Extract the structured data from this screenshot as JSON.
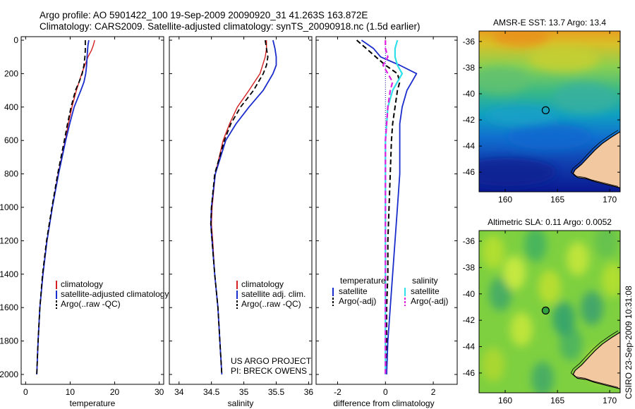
{
  "header": {
    "line1": "Argo profile: AO 5901422_100 19-Sep-2009 20090920_31 41.263S 163.872E",
    "line2": "Climatology: CARS2009. Satellite-adjusted climatology: synTS_20090918.nc (1.5d earlier)"
  },
  "credit": "CSIRO 23-Sep-2009 10:31:08",
  "project": {
    "line1": "US ARGO PROJECT",
    "line2": "PI: BRECK OWENS"
  },
  "colors": {
    "climatology": "#d42020",
    "satellite": "#1a2ccc",
    "argo": "#000000",
    "sal_satellite": "#30e0e8",
    "sal_argo": "#e020e0"
  },
  "chart_data": [
    {
      "type": "line",
      "id": "temperature",
      "xlabel": "temperature",
      "ylabel": "",
      "xlim": [
        -1,
        31
      ],
      "ylim": [
        2050,
        0
      ],
      "xticks": [
        0,
        10,
        20,
        30
      ],
      "yticks": [
        0,
        200,
        400,
        600,
        800,
        1000,
        1200,
        1400,
        1600,
        1800,
        2000
      ],
      "legend": [
        "climatology",
        "satellite-adjusted climatology",
        "Argo(..raw -QC)"
      ],
      "series": [
        {
          "name": "climatology",
          "depth": [
            0,
            30,
            60,
            100,
            150,
            200,
            250,
            300,
            400,
            500,
            600,
            800,
            1000,
            1200,
            1400,
            1600,
            1800,
            2000
          ],
          "values": [
            15.5,
            15.2,
            14.8,
            14.0,
            13.3,
            12.6,
            12.0,
            11.4,
            10.4,
            9.6,
            8.9,
            7.3,
            6.0,
            4.8,
            3.9,
            3.2,
            2.8,
            2.5
          ]
        },
        {
          "name": "satellite-adjusted climatology",
          "depth": [
            0,
            30,
            60,
            100,
            150,
            200,
            250,
            300,
            400,
            500,
            600,
            800,
            1000,
            1200,
            1400,
            1600,
            1800,
            2000
          ],
          "values": [
            14.2,
            14.0,
            13.9,
            13.8,
            13.7,
            13.5,
            13.1,
            12.4,
            10.9,
            9.9,
            9.0,
            7.4,
            6.0,
            4.8,
            3.9,
            3.2,
            2.8,
            2.5
          ]
        },
        {
          "name": "Argo(..raw -QC)",
          "depth": [
            0,
            30,
            60,
            100,
            150,
            200,
            250,
            300,
            400,
            500,
            600,
            800,
            1000,
            1200,
            1400,
            1600,
            1800,
            2000
          ],
          "values": [
            13.4,
            13.4,
            13.4,
            13.3,
            13.1,
            12.7,
            12.0,
            11.2,
            10.2,
            9.4,
            8.7,
            7.2,
            5.9,
            4.7,
            3.8,
            3.2,
            2.8,
            2.5
          ]
        }
      ]
    },
    {
      "type": "line",
      "id": "salinity",
      "xlabel": "salinity",
      "ylabel": "",
      "xlim": [
        33.85,
        36.05
      ],
      "ylim": [
        2050,
        0
      ],
      "xticks": [
        34,
        34.5,
        35,
        35.5,
        36
      ],
      "legend": [
        "climatology",
        "satellite adj. clim.",
        "Argo(..raw -QC)"
      ],
      "series": [
        {
          "name": "climatology",
          "depth": [
            0,
            50,
            100,
            200,
            300,
            400,
            500,
            600,
            800,
            1000,
            1100,
            1200,
            1400,
            1600,
            1800,
            2000
          ],
          "values": [
            35.35,
            35.35,
            35.33,
            35.25,
            35.08,
            34.9,
            34.78,
            34.68,
            34.56,
            34.51,
            34.5,
            34.52,
            34.55,
            34.6,
            34.63,
            34.66
          ]
        },
        {
          "name": "satellite adj. clim.",
          "depth": [
            0,
            50,
            100,
            150,
            200,
            300,
            400,
            500,
            600,
            800,
            1000,
            1100,
            1200,
            1400,
            1600,
            1800,
            2000
          ],
          "values": [
            35.45,
            35.48,
            35.5,
            35.5,
            35.45,
            35.3,
            35.08,
            34.88,
            34.72,
            34.56,
            34.5,
            34.49,
            34.51,
            34.55,
            34.6,
            34.63,
            34.66
          ]
        },
        {
          "name": "Argo(..raw -QC)",
          "depth": [
            0,
            50,
            100,
            150,
            200,
            300,
            400,
            500,
            600,
            800,
            1000,
            1100,
            1200,
            1400,
            1600,
            1800,
            2000
          ],
          "values": [
            35.33,
            35.35,
            35.37,
            35.35,
            35.3,
            35.15,
            34.95,
            34.8,
            34.7,
            34.55,
            34.5,
            34.49,
            34.51,
            34.55,
            34.6,
            34.63,
            34.66
          ]
        }
      ]
    },
    {
      "type": "line",
      "id": "difference",
      "xlabel": "difference from climatology",
      "ylabel": "",
      "xlim": [
        -2.9,
        3.0
      ],
      "ylim": [
        2050,
        0
      ],
      "xticks": [
        -2,
        0,
        2
      ],
      "legend_groups": [
        {
          "title": "temperature",
          "entries": [
            "satellite",
            "Argo(-adj)"
          ]
        },
        {
          "title": "salinity",
          "entries": [
            "satellite",
            "Argo(-adj)"
          ]
        }
      ],
      "series": [
        {
          "name": "temperature satellite",
          "depth": [
            0,
            50,
            100,
            150,
            200,
            250,
            300,
            400,
            500,
            600,
            800,
            1000,
            1200,
            1400,
            1600,
            1800,
            2000
          ],
          "values": [
            -1.0,
            -0.5,
            -0.2,
            0.6,
            1.3,
            1.1,
            0.9,
            0.7,
            0.6,
            0.6,
            0.6,
            0.5,
            0.4,
            0.3,
            0.2,
            0.1,
            0.05
          ]
        },
        {
          "name": "temperature Argo(-adj)",
          "depth": [
            0,
            50,
            100,
            150,
            200,
            250,
            300,
            400,
            500,
            600,
            800,
            1000,
            1200,
            1400,
            1600,
            1800,
            2000
          ],
          "values": [
            -1.2,
            -0.8,
            -0.4,
            0.0,
            0.5,
            0.6,
            0.5,
            0.4,
            0.3,
            0.25,
            0.2,
            0.15,
            0.1,
            0.1,
            0.05,
            0.05,
            0.0
          ]
        },
        {
          "name": "salinity satellite",
          "depth": [
            0,
            50,
            100,
            150,
            200,
            300,
            400,
            500,
            600,
            800,
            1000,
            1200,
            1400,
            1600,
            1800,
            2000
          ],
          "values": [
            0.5,
            0.4,
            0.4,
            0.5,
            0.7,
            0.3,
            0.1,
            0.05,
            0.0,
            0.0,
            0.0,
            0.0,
            0.0,
            0.0,
            0.0,
            0.0
          ]
        },
        {
          "name": "salinity Argo(-adj)",
          "depth": [
            0,
            50,
            100,
            150,
            200,
            250,
            300,
            400,
            500,
            600,
            800,
            1000,
            1200,
            1400,
            1600,
            1800,
            2000
          ],
          "values": [
            0.0,
            0.0,
            0.1,
            -0.1,
            0.1,
            0.3,
            0.2,
            0.1,
            0.05,
            0.0,
            0.0,
            0.0,
            0.0,
            0.0,
            0.0,
            0.0,
            0.0
          ]
        }
      ]
    },
    {
      "type": "heatmap",
      "id": "sst_map",
      "title": "AMSR-E SST: 13.7 Argo: 13.4",
      "xlim": [
        157.5,
        171
      ],
      "ylim": [
        -47.5,
        -35.2
      ],
      "xticks": [
        160,
        165,
        170
      ],
      "yticks": [
        -36,
        -38,
        -40,
        -42,
        -44,
        -46
      ],
      "argo_point": [
        163.872,
        -41.263
      ]
    },
    {
      "type": "heatmap",
      "id": "sla_map",
      "title": "Altimetric SLA: 0.11 Argo: 0.0052",
      "xlim": [
        157.5,
        171
      ],
      "ylim": [
        -47.5,
        -35.2
      ],
      "xticks": [
        160,
        165,
        170
      ],
      "yticks": [
        -36,
        -38,
        -40,
        -42,
        -44,
        -46
      ],
      "argo_point": [
        163.872,
        -41.263
      ]
    }
  ]
}
